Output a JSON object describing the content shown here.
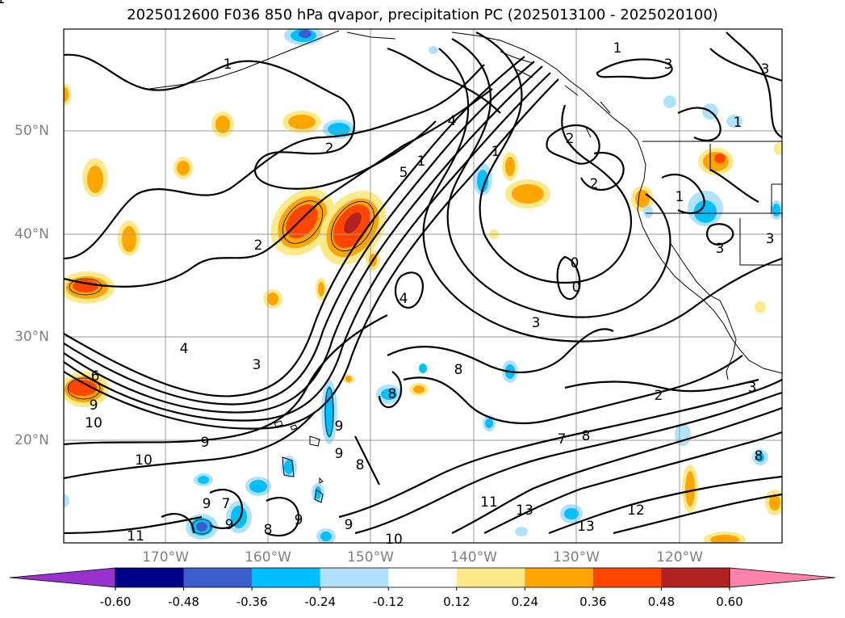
{
  "title": "2025012600 F036 850 hPa qvapor, precipitation PC (2025013100 - 2025020100)",
  "lat_labels": [
    "50°N",
    "40°N",
    "30°N",
    "20°N"
  ],
  "lon_labels": [
    "170°W",
    "160°W",
    "150°W",
    "140°W",
    "130°W",
    "120°W"
  ],
  "contour_labels": [
    "1",
    "1",
    "2",
    "1",
    "3",
    "3",
    "4",
    "5",
    "1",
    "1",
    "2",
    "2",
    "1",
    "1",
    "3",
    "3",
    "2",
    "4",
    "0",
    "0",
    "3",
    "3",
    "4",
    "6",
    "9",
    "10",
    "9",
    "8",
    "9",
    "9",
    "8",
    "8",
    "2",
    "7",
    "8",
    "3",
    "10",
    "11",
    "13",
    "13",
    "12",
    "8",
    "9",
    "7",
    "9",
    "9",
    "8",
    "9",
    "10",
    "11"
  ],
  "colorbar": {
    "ticks": [
      "-0.60",
      "-0.48",
      "-0.36",
      "-0.24",
      "-0.12",
      "0.12",
      "0.24",
      "0.36",
      "0.48",
      "0.60"
    ],
    "colors": [
      "#9932cc",
      "#00008b",
      "#3a5fcd",
      "#00bfff",
      "#b0e2ff",
      "#ffffff",
      "#fbe98a",
      "#ffa500",
      "#ff4500",
      "#b22222",
      "#ff82ab"
    ]
  },
  "fill_colors": {
    "neg_light": "#b0e2ff",
    "neg": "#00bfff",
    "neg_dark": "#3a5fcd",
    "pos_light": "#fbe98a",
    "pos": "#ffa500",
    "pos_dark": "#ff4500",
    "pos_darker": "#b22222"
  }
}
